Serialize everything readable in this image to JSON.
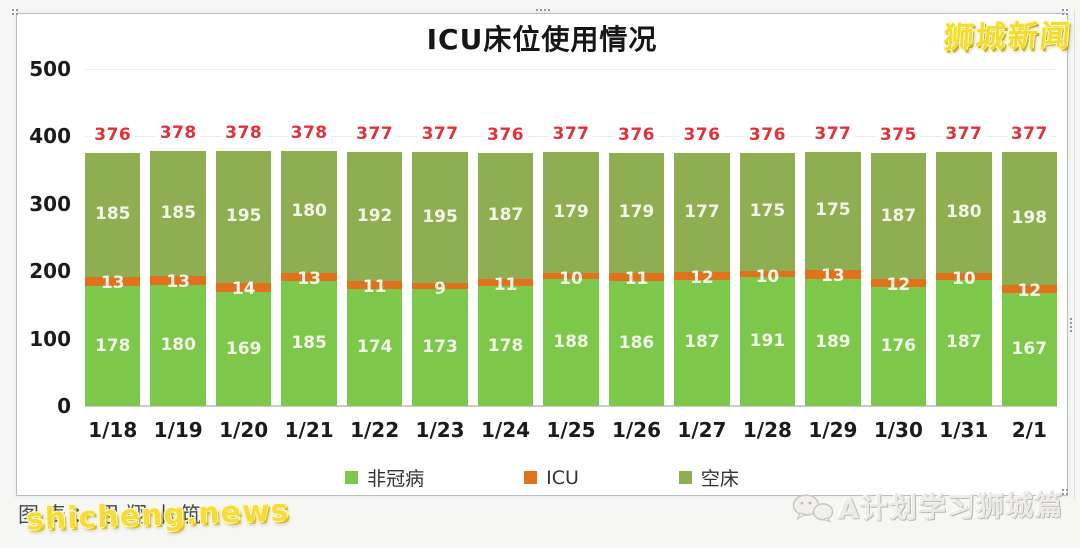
{
  "window": {
    "watermark_top_right": "狮城新闻",
    "watermark_bottom_left_source": "图表：思翔小筑",
    "watermark_bottom_left_site": "shicheng.news",
    "watermark_bottom_right": "A计划学习狮城篇"
  },
  "chart_data": {
    "type": "bar",
    "stacked": true,
    "title": "ICU床位使用情况",
    "categories": [
      "1/18",
      "1/19",
      "1/20",
      "1/21",
      "1/22",
      "1/23",
      "1/24",
      "1/25",
      "1/26",
      "1/27",
      "1/28",
      "1/29",
      "1/30",
      "1/31",
      "2/1"
    ],
    "series": [
      {
        "name": "非冠病",
        "color": "#7DC74B",
        "values": [
          178,
          180,
          169,
          185,
          174,
          173,
          178,
          188,
          186,
          187,
          191,
          189,
          176,
          187,
          167
        ]
      },
      {
        "name": "ICU",
        "color": "#E2711E",
        "values": [
          13,
          13,
          14,
          13,
          11,
          9,
          11,
          10,
          11,
          12,
          10,
          13,
          12,
          10,
          12
        ]
      },
      {
        "name": "空床",
        "color": "#8FAE52",
        "values": [
          185,
          185,
          195,
          180,
          192,
          195,
          187,
          179,
          179,
          177,
          175,
          175,
          187,
          180,
          198
        ]
      }
    ],
    "totals": [
      376,
      378,
      378,
      378,
      377,
      377,
      376,
      377,
      376,
      376,
      376,
      377,
      375,
      377,
      377
    ],
    "totals_color": "#E03238",
    "segment_label_color": "#F2F7E8",
    "ylim": [
      0,
      500
    ],
    "yticks": [
      500,
      400,
      300,
      200,
      100,
      0
    ],
    "grid": "horizontal-light",
    "legend_position": "bottom"
  }
}
